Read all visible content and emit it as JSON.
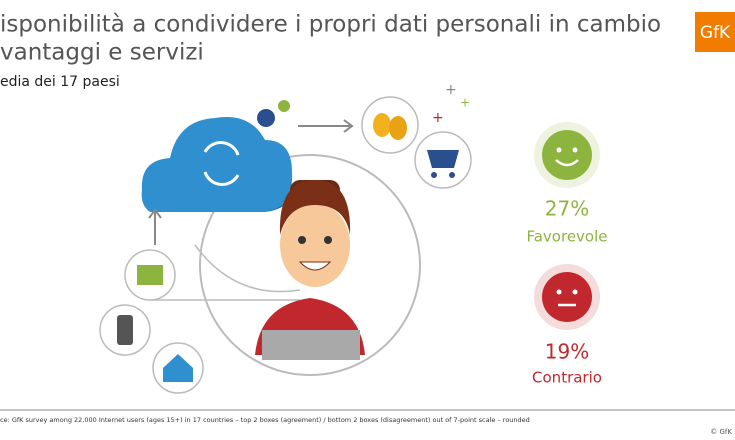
{
  "header": {
    "title_lines": [
      "isponibilità a condividere i propri dati personali in cambio",
      "vantaggi e servizi"
    ],
    "subtitle": "edia dei 17 paesi",
    "logo": "GfK"
  },
  "results": [
    {
      "value": "27%",
      "label": "Favorevole"
    },
    {
      "value": "19%",
      "label": "Contrario"
    }
  ],
  "footer": {
    "source": "ce: GfK survey among 22,000 Internet users (ages 15+) in 17 countries –  top 2 boxes (agreement) / bottom 2 boxes (disagreement) out of 7-point scale – rounded",
    "copyright": "© GfK"
  }
}
